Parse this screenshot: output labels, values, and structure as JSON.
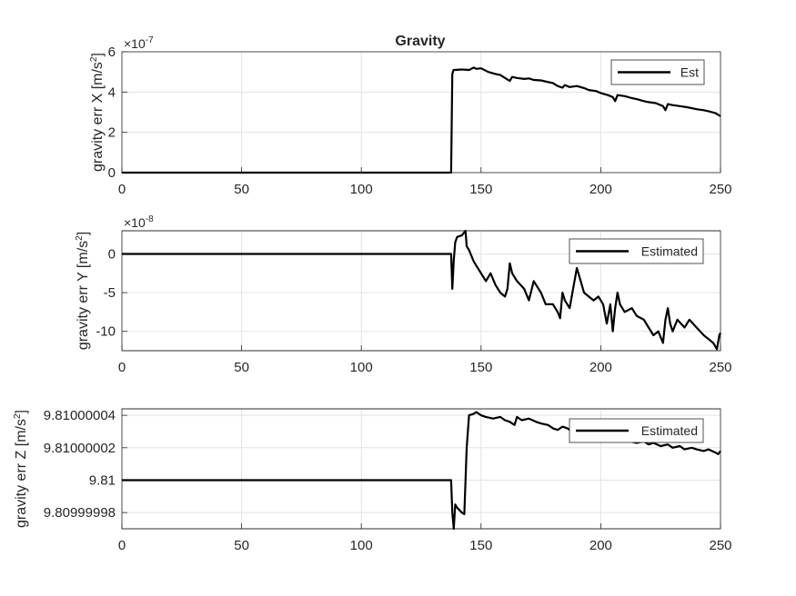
{
  "figure": {
    "title": "Gravity"
  },
  "chart_data": [
    {
      "type": "line",
      "title": "Gravity",
      "xlabel": "",
      "ylabel": "gravity err X [m/s^2]",
      "ylabel_main": "gravity err X [m/s",
      "ylabel_sup": "2",
      "ylabel_end": "]",
      "xlim": [
        0,
        250
      ],
      "ylim": [
        0,
        6e-07
      ],
      "exponent_label": "×10",
      "exponent_sup": "-7",
      "xticks": [
        0,
        50,
        100,
        150,
        200,
        250
      ],
      "yticks": [
        0,
        2e-07,
        4e-07,
        6e-07
      ],
      "ytick_labels": [
        "0",
        "2",
        "4",
        "6"
      ],
      "grid": true,
      "legend": "top-right",
      "series": [
        {
          "name": "Est",
          "color": "#000000",
          "x": [
            0,
            137.5,
            138,
            138.5,
            139,
            142,
            145,
            147,
            148,
            150,
            153,
            156,
            158,
            160,
            162,
            163,
            165,
            168,
            170,
            172,
            175,
            178,
            180,
            182,
            184,
            185,
            187,
            190,
            193,
            195,
            198,
            200,
            203,
            205,
            206,
            207,
            210,
            213,
            215,
            218,
            220,
            223,
            226,
            227,
            228,
            230,
            233,
            236,
            238,
            240,
            243,
            245,
            248,
            250
          ],
          "y": [
            0,
            0,
            4.9e-07,
            5.1e-07,
            5.1e-07,
            5.12e-07,
            5.1e-07,
            5.22e-07,
            5.15e-07,
            5.18e-07,
            5e-07,
            4.9e-07,
            4.85e-07,
            4.7e-07,
            4.55e-07,
            4.75e-07,
            4.7e-07,
            4.65e-07,
            4.68e-07,
            4.6e-07,
            4.58e-07,
            4.5e-07,
            4.45e-07,
            4.3e-07,
            4.22e-07,
            4.35e-07,
            4.25e-07,
            4.3e-07,
            4.2e-07,
            4.1e-07,
            4.05e-07,
            3.95e-07,
            3.85e-07,
            3.75e-07,
            3.55e-07,
            3.85e-07,
            3.8e-07,
            3.7e-07,
            3.65e-07,
            3.55e-07,
            3.5e-07,
            3.45e-07,
            3.3e-07,
            3.1e-07,
            3.4e-07,
            3.35e-07,
            3.3e-07,
            3.25e-07,
            3.2e-07,
            3.15e-07,
            3.1e-07,
            3.05e-07,
            2.95e-07,
            2.8e-07
          ]
        }
      ]
    },
    {
      "type": "line",
      "xlabel": "",
      "ylabel": "gravity err Y [m/s^2]",
      "ylabel_main": "gravity err Y [m/s",
      "ylabel_sup": "2",
      "ylabel_end": "]",
      "xlim": [
        0,
        250
      ],
      "ylim": [
        -1.25e-07,
        3e-08
      ],
      "exponent_label": "×10",
      "exponent_sup": "-8",
      "xticks": [
        0,
        50,
        100,
        150,
        200,
        250
      ],
      "yticks": [
        0,
        -5e-08,
        -1e-07
      ],
      "ytick_labels": [
        "0",
        "-5",
        "-10"
      ],
      "grid": true,
      "legend": "top-right",
      "series": [
        {
          "name": "Estimated",
          "color": "#000000",
          "x": [
            0,
            137.5,
            138,
            138.6,
            139.2,
            140,
            142,
            143.5,
            144,
            145,
            147,
            150,
            152,
            154,
            156,
            158,
            160,
            161,
            162,
            163,
            165,
            168,
            170,
            172,
            175,
            177,
            180,
            182,
            183,
            184,
            185,
            187,
            190,
            193,
            195,
            197,
            199,
            201,
            202.5,
            204,
            205,
            206,
            207,
            208,
            210,
            213,
            215,
            218,
            220,
            222,
            224,
            226,
            227,
            228,
            229,
            230,
            232,
            235,
            237,
            240,
            243,
            245,
            247,
            248.5,
            249.5,
            250
          ],
          "y": [
            0,
            0,
            -4.5e-08,
            -8e-09,
            1.5e-08,
            2.2e-08,
            2.4e-08,
            3e-08,
            1e-08,
            5e-09,
            -1e-08,
            -2.5e-08,
            -3.5e-08,
            -2.5e-08,
            -4e-08,
            -5e-08,
            -5.5e-08,
            -4.5e-08,
            -1.2e-08,
            -2.5e-08,
            -3.5e-08,
            -4.5e-08,
            -6e-08,
            -3.5e-08,
            -5e-08,
            -6.5e-08,
            -6.5e-08,
            -7.5e-08,
            -8.3e-08,
            -5e-08,
            -6e-08,
            -7e-08,
            -1.8e-08,
            -5e-08,
            -5.5e-08,
            -6e-08,
            -5.5e-08,
            -6.5e-08,
            -9e-08,
            -6.5e-08,
            -1e-07,
            -7e-08,
            -5e-08,
            -6.5e-08,
            -7.5e-08,
            -7e-08,
            -8e-08,
            -8.5e-08,
            -9.5e-08,
            -1.05e-07,
            -1e-07,
            -1.15e-07,
            -8.5e-08,
            -7e-08,
            -9e-08,
            -1e-07,
            -8.5e-08,
            -9.5e-08,
            -8.5e-08,
            -9.5e-08,
            -1.05e-07,
            -1.1e-07,
            -1.15e-07,
            -1.23e-07,
            -1.05e-07,
            -1.02e-07
          ]
        }
      ]
    },
    {
      "type": "line",
      "xlabel": "",
      "ylabel": "gravity err Z [m/s^2]",
      "ylabel_main": "gravity err Z [m/s",
      "ylabel_sup": "2",
      "ylabel_end": "]",
      "xlim": [
        0,
        250
      ],
      "ylim": [
        9.80999997,
        9.810000044
      ],
      "exponent_label": "",
      "exponent_sup": "",
      "xticks": [
        0,
        50,
        100,
        150,
        200,
        250
      ],
      "yticks": [
        9.80999998,
        9.81,
        9.81000002,
        9.81000004
      ],
      "ytick_labels": [
        "9.80999998",
        "9.81",
        "9.81000002",
        "9.81000004"
      ],
      "grid": true,
      "legend": "top-right",
      "series": [
        {
          "name": "Estimated",
          "color": "#000000",
          "x": [
            0,
            137.5,
            138,
            138.6,
            139.2,
            140,
            142,
            143,
            144,
            145,
            147,
            148,
            150,
            152,
            155,
            158,
            160,
            162,
            164,
            165,
            167,
            170,
            173,
            175,
            178,
            180,
            182,
            184,
            186,
            188,
            190,
            192,
            195,
            198,
            200,
            203,
            205,
            208,
            210,
            212,
            215,
            218,
            220,
            222,
            225,
            228,
            230,
            233,
            235,
            238,
            240,
            243,
            245,
            248,
            249,
            250
          ],
          "y": [
            9.81,
            9.81,
            9.80999998,
            9.80999997,
            9.809999985,
            9.809999983,
            9.80999998,
            9.809999979,
            9.81000002,
            9.81000004,
            9.810000041,
            9.810000042,
            9.81000004,
            9.810000039,
            9.810000038,
            9.810000039,
            9.810000037,
            9.810000036,
            9.810000034,
            9.810000039,
            9.810000037,
            9.810000038,
            9.810000036,
            9.810000035,
            9.810000034,
            9.810000032,
            9.810000031,
            9.810000033,
            9.810000032,
            9.81000003,
            9.810000029,
            9.81000003,
            9.810000028,
            9.810000027,
            9.810000026,
            9.810000027,
            9.810000025,
            9.810000026,
            9.810000025,
            9.810000024,
            9.810000023,
            9.810000024,
            9.810000022,
            9.810000023,
            9.810000021,
            9.810000022,
            9.81000002,
            9.810000021,
            9.810000019,
            9.81000002,
            9.810000019,
            9.810000018,
            9.810000019,
            9.810000017,
            9.810000016,
            9.810000018
          ]
        }
      ]
    }
  ]
}
